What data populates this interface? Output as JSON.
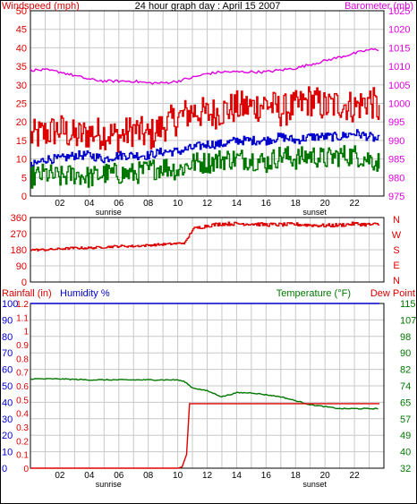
{
  "chart_data": [
    {
      "id": "wind_baro",
      "type": "line",
      "title": "24 hour graph day : April 15 2007",
      "left_axis_label": "Windspeed (mph)",
      "right_axis_label": "Barometer (mb)",
      "x_tick_labels": [
        "02",
        "04",
        "06",
        "08",
        "10",
        "12",
        "14",
        "16",
        "18",
        "20",
        "22"
      ],
      "x_annotations": [
        {
          "label": "sunrise",
          "hour": 5.3
        },
        {
          "label": "sunset",
          "hour": 19.3
        }
      ],
      "xlim": [
        0,
        24
      ],
      "ylim_left": [
        0,
        50
      ],
      "ylim_right": [
        975,
        1025
      ],
      "y_ticks_left": [
        0,
        5,
        10,
        15,
        20,
        25,
        30,
        35,
        40,
        45,
        50
      ],
      "y_ticks_right": [
        975,
        980,
        985,
        990,
        995,
        1000,
        1005,
        1010,
        1015,
        1020,
        1025
      ],
      "grid": true,
      "series": [
        {
          "name": "Windspeed (mph)",
          "key": "gust",
          "color": "#dd0000",
          "axis": "left",
          "x": [
            0,
            1,
            2,
            3,
            4,
            5,
            6,
            7,
            8,
            9,
            10,
            11,
            12,
            13,
            14,
            15,
            16,
            17,
            18,
            19,
            20,
            21,
            22,
            23,
            23.7
          ],
          "values": [
            16,
            17,
            18,
            16,
            17,
            17,
            16,
            18,
            16,
            19,
            21,
            23,
            22,
            23,
            24,
            24,
            25,
            23,
            24,
            26,
            24,
            25,
            24,
            26,
            23
          ]
        },
        {
          "name": "",
          "key": "avg",
          "color": "#0000cc",
          "axis": "left",
          "x": [
            0,
            1,
            2,
            3,
            4,
            5,
            6,
            7,
            8,
            9,
            10,
            11,
            12,
            13,
            14,
            15,
            16,
            17,
            18,
            19,
            20,
            21,
            22,
            23,
            23.7
          ],
          "values": [
            8,
            10,
            10,
            11,
            11,
            10,
            11,
            11,
            11,
            12,
            12,
            13,
            14,
            14,
            15,
            15,
            15,
            16,
            15,
            16,
            16,
            16,
            17,
            16,
            15
          ]
        },
        {
          "name": "",
          "key": "low",
          "color": "#007700",
          "axis": "left",
          "x": [
            0,
            1,
            2,
            3,
            4,
            5,
            6,
            7,
            8,
            9,
            10,
            11,
            12,
            13,
            14,
            15,
            16,
            17,
            18,
            19,
            20,
            21,
            22,
            23,
            23.7
          ],
          "values": [
            5,
            6,
            5,
            6,
            5,
            6,
            6,
            6,
            7,
            8,
            7,
            9,
            9,
            10,
            10,
            10,
            9,
            11,
            10,
            11,
            10,
            11,
            11,
            10,
            9
          ]
        },
        {
          "name": "Barometer (mb)",
          "key": "baro",
          "color": "#dd00dd",
          "axis": "right",
          "x": [
            0,
            1,
            2,
            3,
            4,
            5,
            6,
            7,
            8,
            9,
            10,
            11,
            12,
            13,
            14,
            15,
            16,
            17,
            18,
            19,
            20,
            21,
            22,
            23,
            23.7
          ],
          "values": [
            1009,
            1009,
            1008.5,
            1007.5,
            1006.5,
            1006,
            1006,
            1006,
            1005.5,
            1005.5,
            1006,
            1007,
            1008,
            1008.5,
            1008.5,
            1008.5,
            1008.5,
            1009,
            1009.5,
            1010.5,
            1011.5,
            1012.5,
            1013.5,
            1014.5,
            1014.5
          ]
        }
      ]
    },
    {
      "id": "wind_dir",
      "type": "line",
      "y_tick_labels": [
        "360",
        "270",
        "180",
        "90",
        "0"
      ],
      "y_ticks": [
        360,
        270,
        180,
        90,
        0
      ],
      "compass_labels": [
        "N",
        "W",
        "S",
        "E",
        "N"
      ],
      "xlim": [
        0,
        24
      ],
      "ylim": [
        0,
        360
      ],
      "grid": true,
      "series": [
        {
          "name": "",
          "key": "dir",
          "color": "#dd0000",
          "x": [
            0,
            1,
            2,
            3,
            4,
            5,
            6,
            7,
            8,
            9,
            10,
            10.5,
            10.8,
            11,
            12,
            13,
            14,
            15,
            16,
            17,
            18,
            19,
            20,
            21,
            22,
            23,
            23.7
          ],
          "values": [
            180,
            180,
            185,
            190,
            190,
            195,
            200,
            200,
            205,
            210,
            215,
            220,
            265,
            295,
            315,
            325,
            325,
            325,
            320,
            320,
            322,
            318,
            315,
            318,
            325,
            320,
            322
          ]
        }
      ]
    },
    {
      "id": "rain_hum_temp",
      "type": "line",
      "left_axis_label": "Rainfall (in)",
      "humidity_label": "Humidity %",
      "right_axis_label": "Temperature (°F)",
      "dewpoint_label": "Dew Point",
      "x_tick_labels": [
        "02",
        "04",
        "06",
        "08",
        "10",
        "12",
        "14",
        "16",
        "18",
        "20",
        "22"
      ],
      "x_annotations": [
        {
          "label": "sunrise",
          "hour": 5.3
        },
        {
          "label": "sunset",
          "hour": 19.3
        }
      ],
      "xlim": [
        0,
        24
      ],
      "ylim_rain": [
        0,
        1.2
      ],
      "ylim_humidity": [
        0,
        100
      ],
      "ylim_temp": [
        32,
        115
      ],
      "rain_tick_labels": [
        "0",
        "0.1",
        "0.2",
        "0.3",
        "0.4",
        "0.5",
        "0.6",
        "0.7",
        "0.8",
        "0.9",
        "1",
        "1.1",
        "1.2"
      ],
      "humidity_tick_labels": [
        "0",
        "10",
        "20",
        "30",
        "40",
        "50",
        "60",
        "70",
        "80",
        "90",
        "100"
      ],
      "temp_tick_labels": [
        "32",
        "40",
        "49",
        "57",
        "65",
        "74",
        "82",
        "90",
        "98",
        "107",
        "115"
      ],
      "grid": true,
      "series": [
        {
          "name": "Humidity %",
          "key": "humidity",
          "color": "#0000cc",
          "axis": "humidity",
          "x": [
            0,
            23.7
          ],
          "values": [
            100,
            100
          ]
        },
        {
          "name": "Temperature (°F)",
          "key": "temp",
          "color": "#007700",
          "axis": "temp",
          "x": [
            0,
            2,
            4,
            6,
            8,
            10,
            10.5,
            11,
            12,
            13,
            14,
            15,
            16,
            17,
            18,
            19,
            20,
            21,
            22,
            23,
            23.7
          ],
          "values": [
            77,
            77,
            76.5,
            76.5,
            76.5,
            76.5,
            75.5,
            72.5,
            71,
            68,
            70,
            70,
            69,
            68,
            66,
            64,
            63,
            62,
            62,
            62,
            62
          ]
        },
        {
          "name": "Rainfall (in)",
          "key": "rain",
          "color": "#dd0000",
          "axis": "rain",
          "x": [
            0,
            10,
            10.3,
            10.6,
            10.8,
            23.7
          ],
          "values": [
            0,
            0,
            0.01,
            0.1,
            0.47,
            0.47
          ]
        }
      ]
    }
  ]
}
